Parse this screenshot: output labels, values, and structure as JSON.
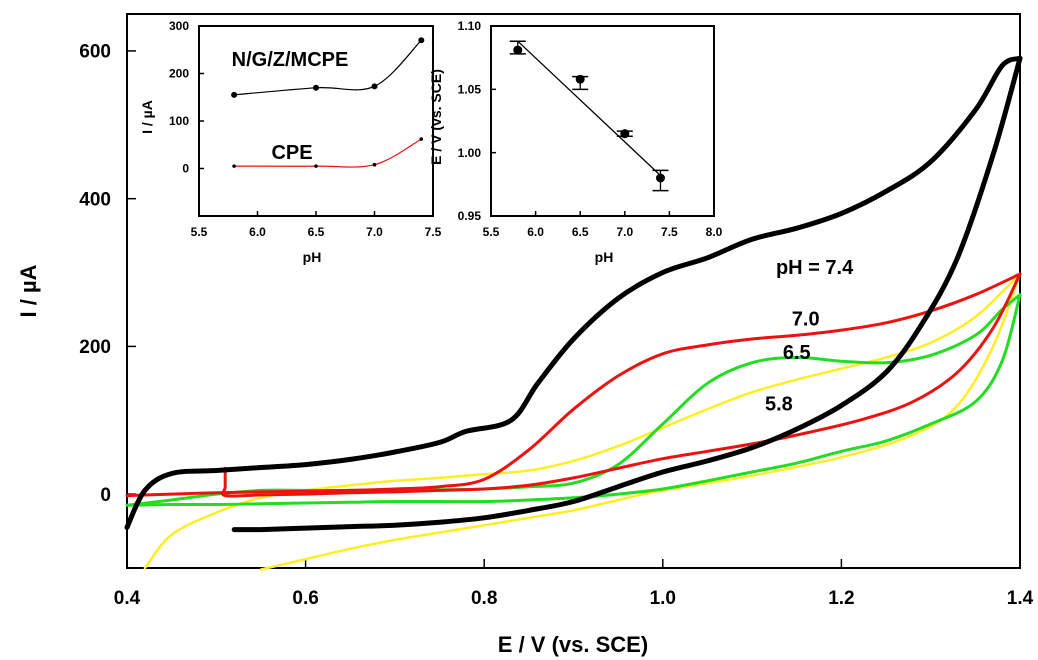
{
  "chart_data": [
    {
      "type": "line",
      "title": "",
      "xlabel": "E / V (vs. SCE)",
      "ylabel": "I / µA",
      "xlim": [
        0.4,
        1.4
      ],
      "ylim": [
        -100,
        650
      ],
      "xticks": [
        0.4,
        0.6,
        0.8,
        1.0,
        1.2,
        1.4
      ],
      "xtick_labels": [
        "0.4",
        "0.6",
        "0.8",
        "1.0",
        "1.2",
        "1.4"
      ],
      "yticks": [
        0,
        200,
        400,
        600
      ],
      "ytick_labels": [
        "0",
        "200",
        "400",
        "600"
      ],
      "grid": false,
      "annotations": [
        {
          "text": "pH = 7.4",
          "x": 1.17,
          "y": 298
        },
        {
          "text": "7.0",
          "x": 1.16,
          "y": 228
        },
        {
          "text": "6.5",
          "x": 1.15,
          "y": 183
        },
        {
          "text": "5.8",
          "x": 1.13,
          "y": 113
        }
      ],
      "series": [
        {
          "label": "7.4",
          "color": "#000000",
          "forward": [
            [
              0.4,
              -45
            ],
            [
              0.42,
              5
            ],
            [
              0.45,
              28
            ],
            [
              0.5,
              32
            ],
            [
              0.55,
              36
            ],
            [
              0.6,
              40
            ],
            [
              0.65,
              47
            ],
            [
              0.7,
              57
            ],
            [
              0.75,
              70
            ],
            [
              0.78,
              85
            ],
            [
              0.83,
              100
            ],
            [
              0.86,
              150
            ],
            [
              0.9,
              210
            ],
            [
              0.95,
              265
            ],
            [
              1.0,
              300
            ],
            [
              1.05,
              320
            ],
            [
              1.1,
              345
            ],
            [
              1.15,
              360
            ],
            [
              1.2,
              380
            ],
            [
              1.25,
              410
            ],
            [
              1.3,
              450
            ],
            [
              1.35,
              520
            ],
            [
              1.38,
              580
            ],
            [
              1.4,
              590
            ]
          ],
          "reverse": [
            [
              1.4,
              590
            ],
            [
              1.37,
              460
            ],
            [
              1.33,
              320
            ],
            [
              1.29,
              230
            ],
            [
              1.25,
              165
            ],
            [
              1.2,
              120
            ],
            [
              1.15,
              88
            ],
            [
              1.1,
              63
            ],
            [
              1.05,
              45
            ],
            [
              1.0,
              30
            ],
            [
              0.95,
              10
            ],
            [
              0.9,
              -10
            ],
            [
              0.85,
              -22
            ],
            [
              0.8,
              -32
            ],
            [
              0.75,
              -38
            ],
            [
              0.7,
              -42
            ],
            [
              0.65,
              -44
            ],
            [
              0.6,
              -46
            ],
            [
              0.55,
              -48
            ],
            [
              0.52,
              -48
            ]
          ]
        },
        {
          "label": "7.0",
          "color": "#ee1111",
          "forward": [
            [
              0.4,
              -2
            ],
            [
              0.45,
              0
            ],
            [
              0.5,
              2
            ],
            [
              0.55,
              3
            ],
            [
              0.6,
              4
            ],
            [
              0.65,
              5
            ],
            [
              0.7,
              7
            ],
            [
              0.75,
              10
            ],
            [
              0.8,
              20
            ],
            [
              0.85,
              60
            ],
            [
              0.9,
              115
            ],
            [
              0.95,
              160
            ],
            [
              1.0,
              190
            ],
            [
              1.05,
              202
            ],
            [
              1.1,
              210
            ],
            [
              1.15,
              215
            ],
            [
              1.2,
              222
            ],
            [
              1.25,
              232
            ],
            [
              1.3,
              248
            ],
            [
              1.35,
              270
            ],
            [
              1.4,
              298
            ]
          ],
          "reverse": [
            [
              1.4,
              298
            ],
            [
              1.37,
              225
            ],
            [
              1.33,
              165
            ],
            [
              1.28,
              125
            ],
            [
              1.22,
              100
            ],
            [
              1.15,
              80
            ],
            [
              1.1,
              68
            ],
            [
              1.05,
              58
            ],
            [
              1.0,
              48
            ],
            [
              0.95,
              35
            ],
            [
              0.9,
              22
            ],
            [
              0.85,
              12
            ],
            [
              0.8,
              7
            ],
            [
              0.75,
              5
            ],
            [
              0.7,
              3
            ],
            [
              0.65,
              2
            ],
            [
              0.6,
              0
            ],
            [
              0.55,
              -1
            ],
            [
              0.51,
              -2
            ],
            [
              0.51,
              10
            ],
            [
              0.51,
              35
            ]
          ]
        },
        {
          "label": "6.5",
          "color": "#22dd22",
          "forward": [
            [
              0.4,
              -15
            ],
            [
              0.45,
              -8
            ],
            [
              0.5,
              0
            ],
            [
              0.55,
              5
            ],
            [
              0.6,
              5
            ],
            [
              0.65,
              5
            ],
            [
              0.7,
              6
            ],
            [
              0.75,
              6
            ],
            [
              0.8,
              7
            ],
            [
              0.85,
              10
            ],
            [
              0.9,
              15
            ],
            [
              0.95,
              40
            ],
            [
              1.0,
              95
            ],
            [
              1.05,
              150
            ],
            [
              1.1,
              178
            ],
            [
              1.15,
              185
            ],
            [
              1.2,
              180
            ],
            [
              1.25,
              178
            ],
            [
              1.3,
              188
            ],
            [
              1.35,
              215
            ],
            [
              1.38,
              250
            ],
            [
              1.4,
              270
            ]
          ],
          "reverse": [
            [
              1.4,
              270
            ],
            [
              1.38,
              180
            ],
            [
              1.35,
              125
            ],
            [
              1.3,
              95
            ],
            [
              1.25,
              72
            ],
            [
              1.2,
              58
            ],
            [
              1.15,
              42
            ],
            [
              1.1,
              30
            ],
            [
              1.05,
              18
            ],
            [
              1.0,
              7
            ],
            [
              0.95,
              0
            ],
            [
              0.9,
              -5
            ],
            [
              0.85,
              -8
            ],
            [
              0.8,
              -10
            ],
            [
              0.75,
              -10
            ],
            [
              0.7,
              -10
            ],
            [
              0.65,
              -11
            ],
            [
              0.6,
              -12
            ],
            [
              0.55,
              -13
            ],
            [
              0.5,
              -14
            ],
            [
              0.45,
              -14
            ],
            [
              0.4,
              -15
            ]
          ]
        },
        {
          "label": "5.8",
          "color": "#ffee22",
          "forward": [
            [
              0.42,
              -100
            ],
            [
              0.45,
              -55
            ],
            [
              0.5,
              -25
            ],
            [
              0.55,
              -5
            ],
            [
              0.6,
              5
            ],
            [
              0.65,
              12
            ],
            [
              0.7,
              18
            ],
            [
              0.75,
              22
            ],
            [
              0.8,
              27
            ],
            [
              0.85,
              32
            ],
            [
              0.9,
              45
            ],
            [
              0.95,
              65
            ],
            [
              1.0,
              90
            ],
            [
              1.05,
              115
            ],
            [
              1.1,
              138
            ],
            [
              1.15,
              155
            ],
            [
              1.2,
              170
            ],
            [
              1.25,
              185
            ],
            [
              1.3,
              205
            ],
            [
              1.35,
              240
            ],
            [
              1.4,
              298
            ]
          ],
          "reverse": [
            [
              1.4,
              298
            ],
            [
              1.37,
              200
            ],
            [
              1.33,
              120
            ],
            [
              1.28,
              80
            ],
            [
              1.2,
              50
            ],
            [
              1.1,
              25
            ],
            [
              1.0,
              5
            ],
            [
              0.95,
              -8
            ],
            [
              0.9,
              -22
            ],
            [
              0.85,
              -32
            ],
            [
              0.8,
              -42
            ],
            [
              0.75,
              -52
            ],
            [
              0.7,
              -62
            ],
            [
              0.65,
              -74
            ],
            [
              0.6,
              -88
            ],
            [
              0.55,
              -102
            ]
          ]
        }
      ]
    },
    {
      "type": "line",
      "title": "",
      "xlabel": "pH",
      "ylabel": "I / µA",
      "xlim": [
        5.5,
        7.5
      ],
      "ylim": [
        -100,
        300
      ],
      "xticks": [
        5.5,
        6.0,
        6.5,
        7.0,
        7.5
      ],
      "xtick_labels": [
        "5.5",
        "6.0",
        "6.5",
        "7.0",
        "7.5"
      ],
      "yticks": [
        0,
        100,
        200,
        300
      ],
      "ytick_labels": [
        "0",
        "100",
        "200",
        "300"
      ],
      "series": [
        {
          "name": "N/G/Z/MCPE",
          "color": "#000000",
          "x": [
            5.8,
            6.5,
            7.0,
            7.4
          ],
          "y": [
            155,
            170,
            173,
            270
          ]
        },
        {
          "name": "CPE",
          "color": "#ee1111",
          "x": [
            5.8,
            6.5,
            7.0,
            7.4
          ],
          "y": [
            5,
            5,
            8,
            62
          ]
        }
      ]
    },
    {
      "type": "scatter",
      "title": "",
      "xlabel": "pH",
      "ylabel": "E / V (vs. SCE)",
      "xlim": [
        5.5,
        8.0
      ],
      "ylim": [
        0.95,
        1.1
      ],
      "xticks": [
        5.5,
        6.0,
        6.5,
        7.0,
        7.5,
        8.0
      ],
      "xtick_labels": [
        "5.5",
        "6.0",
        "6.5",
        "7.0",
        "7.5",
        "8.0"
      ],
      "yticks": [
        0.95,
        1.0,
        1.05,
        1.1
      ],
      "ytick_labels": [
        "0.95",
        "1.00",
        "1.05",
        "1.10"
      ],
      "points": [
        {
          "x": 5.8,
          "y": 1.081,
          "err_lo": 1.078,
          "err_hi": 1.088
        },
        {
          "x": 6.5,
          "y": 1.058,
          "err_lo": 1.05,
          "err_hi": 1.06
        },
        {
          "x": 7.0,
          "y": 1.015,
          "err_lo": 1.013,
          "err_hi": 1.017
        },
        {
          "x": 7.4,
          "y": 0.98,
          "err_lo": 0.97,
          "err_hi": 0.986
        }
      ],
      "fit_line": {
        "x": [
          5.8,
          7.4
        ],
        "y": [
          1.088,
          0.982
        ]
      }
    }
  ]
}
